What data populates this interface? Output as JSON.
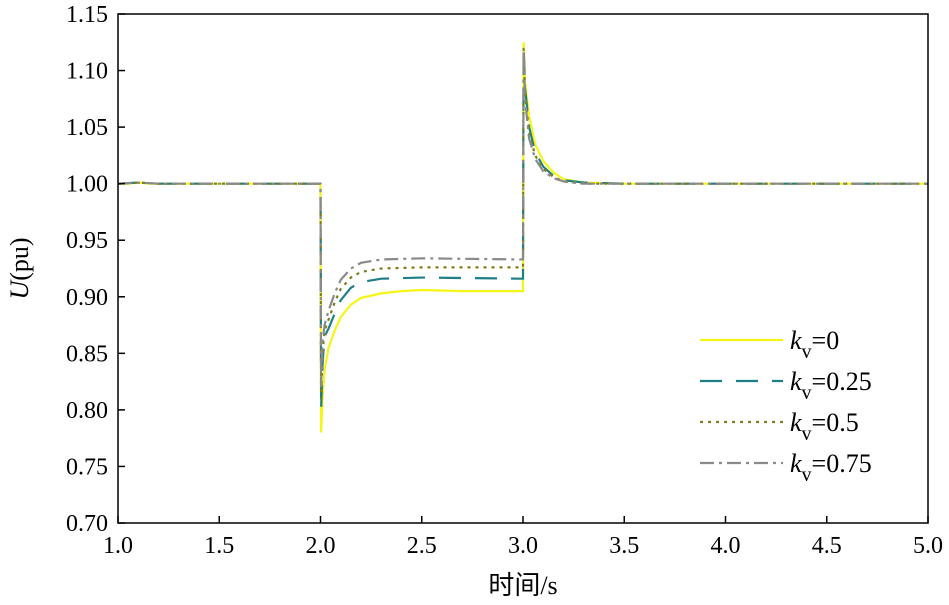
{
  "chart_data": {
    "type": "line",
    "title": "",
    "xlabel": "时间/s",
    "ylabel_italic": "U",
    "ylabel_rest": "(pu)",
    "xlim": [
      1.0,
      5.0
    ],
    "ylim": [
      0.7,
      1.15
    ],
    "x_ticks": [
      "1.0",
      "1.5",
      "2.0",
      "2.5",
      "3.0",
      "3.5",
      "4.0",
      "4.5",
      "5.0"
    ],
    "y_ticks": [
      "0.70",
      "0.75",
      "0.80",
      "0.85",
      "0.90",
      "0.95",
      "1.00",
      "1.05",
      "1.10",
      "1.15"
    ],
    "legend_position": "lower-right",
    "grid": false,
    "series": [
      {
        "name_var": "k",
        "name_sub": "v",
        "name_val": "=0",
        "color": "#f5f516",
        "dash": "none",
        "points": [
          [
            1.0,
            1.0
          ],
          [
            1.05,
            1.0
          ],
          [
            1.1,
            1.001
          ],
          [
            1.15,
            1.0
          ],
          [
            1.5,
            1.0
          ],
          [
            1.99,
            1.0
          ],
          [
            2.0,
            1.0
          ],
          [
            2.003,
            0.78
          ],
          [
            2.01,
            0.81
          ],
          [
            2.02,
            0.835
          ],
          [
            2.04,
            0.855
          ],
          [
            2.07,
            0.87
          ],
          [
            2.1,
            0.882
          ],
          [
            2.15,
            0.893
          ],
          [
            2.2,
            0.899
          ],
          [
            2.3,
            0.903
          ],
          [
            2.4,
            0.905
          ],
          [
            2.5,
            0.906
          ],
          [
            2.7,
            0.905
          ],
          [
            2.99,
            0.905
          ],
          [
            3.0,
            0.905
          ],
          [
            3.003,
            1.125
          ],
          [
            3.01,
            1.09
          ],
          [
            3.03,
            1.06
          ],
          [
            3.06,
            1.035
          ],
          [
            3.1,
            1.02
          ],
          [
            3.15,
            1.01
          ],
          [
            3.2,
            1.004
          ],
          [
            3.3,
            1.001
          ],
          [
            3.5,
            1.0
          ],
          [
            5.0,
            1.0
          ]
        ]
      },
      {
        "name_var": "k",
        "name_sub": "v",
        "name_val": "=0.25",
        "color": "#1e7f86",
        "dash": "22,14",
        "points": [
          [
            1.0,
            1.0
          ],
          [
            1.1,
            1.001
          ],
          [
            1.2,
            1.0
          ],
          [
            1.99,
            1.0
          ],
          [
            2.0,
            1.0
          ],
          [
            2.003,
            0.8
          ],
          [
            2.01,
            0.84
          ],
          [
            2.02,
            0.865
          ],
          [
            2.04,
            0.872
          ],
          [
            2.07,
            0.885
          ],
          [
            2.1,
            0.897
          ],
          [
            2.15,
            0.908
          ],
          [
            2.2,
            0.913
          ],
          [
            2.3,
            0.916
          ],
          [
            2.5,
            0.917
          ],
          [
            2.99,
            0.916
          ],
          [
            3.0,
            0.916
          ],
          [
            3.003,
            1.122
          ],
          [
            3.01,
            1.085
          ],
          [
            3.03,
            1.05
          ],
          [
            3.06,
            1.028
          ],
          [
            3.1,
            1.015
          ],
          [
            3.15,
            1.007
          ],
          [
            3.2,
            1.003
          ],
          [
            3.3,
            1.001
          ],
          [
            3.5,
            1.0
          ],
          [
            5.0,
            1.0
          ]
        ]
      },
      {
        "name_var": "k",
        "name_sub": "v",
        "name_val": "=0.5",
        "color": "#7b7d1a",
        "dash": "3,5",
        "points": [
          [
            1.0,
            1.0
          ],
          [
            1.1,
            1.001
          ],
          [
            1.2,
            1.0
          ],
          [
            1.99,
            1.0
          ],
          [
            2.0,
            1.0
          ],
          [
            2.003,
            0.81
          ],
          [
            2.01,
            0.85
          ],
          [
            2.02,
            0.87
          ],
          [
            2.04,
            0.88
          ],
          [
            2.07,
            0.895
          ],
          [
            2.1,
            0.907
          ],
          [
            2.15,
            0.917
          ],
          [
            2.2,
            0.922
          ],
          [
            2.3,
            0.925
          ],
          [
            2.5,
            0.926
          ],
          [
            2.99,
            0.926
          ],
          [
            3.0,
            0.926
          ],
          [
            3.003,
            1.12
          ],
          [
            3.01,
            1.08
          ],
          [
            3.03,
            1.045
          ],
          [
            3.06,
            1.025
          ],
          [
            3.1,
            1.013
          ],
          [
            3.15,
            1.006
          ],
          [
            3.2,
            1.002
          ],
          [
            3.3,
            1.0
          ],
          [
            5.0,
            1.0
          ]
        ]
      },
      {
        "name_var": "k",
        "name_sub": "v",
        "name_val": "=0.75",
        "color": "#8a8a8a",
        "dash": "14,5,3,5",
        "points": [
          [
            1.0,
            1.0
          ],
          [
            1.1,
            1.001
          ],
          [
            1.2,
            1.0
          ],
          [
            1.99,
            1.0
          ],
          [
            2.0,
            1.0
          ],
          [
            2.003,
            0.82
          ],
          [
            2.01,
            0.86
          ],
          [
            2.02,
            0.875
          ],
          [
            2.04,
            0.888
          ],
          [
            2.07,
            0.903
          ],
          [
            2.1,
            0.915
          ],
          [
            2.15,
            0.925
          ],
          [
            2.2,
            0.93
          ],
          [
            2.3,
            0.933
          ],
          [
            2.5,
            0.934
          ],
          [
            2.99,
            0.933
          ],
          [
            3.0,
            0.933
          ],
          [
            3.003,
            1.118
          ],
          [
            3.01,
            1.075
          ],
          [
            3.03,
            1.04
          ],
          [
            3.06,
            1.022
          ],
          [
            3.1,
            1.011
          ],
          [
            3.15,
            1.005
          ],
          [
            3.2,
            1.002
          ],
          [
            3.3,
            1.0
          ],
          [
            5.0,
            1.0
          ]
        ]
      }
    ]
  }
}
